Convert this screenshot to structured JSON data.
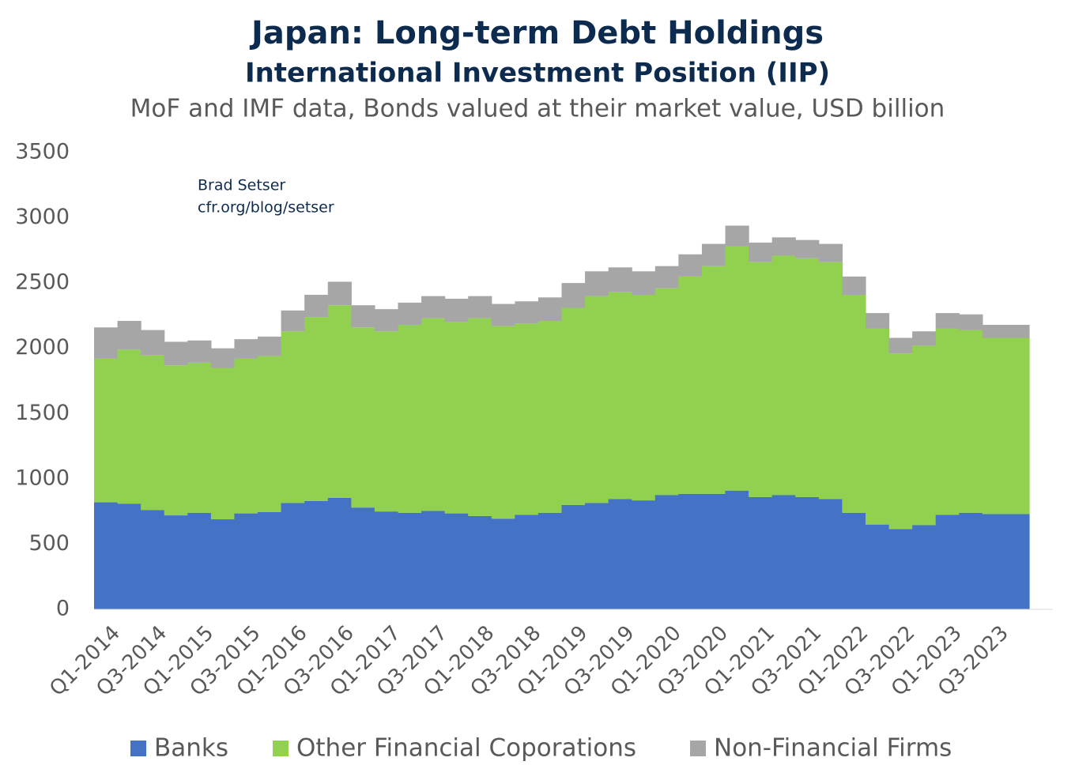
{
  "chart_data": {
    "type": "stacked-bar",
    "title": "Japan: Long-term Debt Holdings",
    "subtitle": "International Investment Position (IIP)",
    "description": "MoF and IMF data, Bonds valued at their market value, USD billion",
    "annotations": [
      "Brad Setser",
      "cfr.org/blog/setser"
    ],
    "categories": [
      "Q1-2014",
      null,
      "Q3-2014",
      null,
      "Q1-2015",
      null,
      "Q3-2015",
      null,
      "Q1-2016",
      null,
      "Q3-2016",
      null,
      "Q1-2017",
      null,
      "Q3-2017",
      null,
      "Q1-2018",
      null,
      "Q3-2018",
      null,
      "Q1-2019",
      null,
      "Q3-2019",
      null,
      "Q1-2020",
      null,
      "Q3-2020",
      null,
      "Q1-2021",
      null,
      "Q3-2021",
      null,
      "Q1-2022",
      null,
      "Q3-2022",
      null,
      "Q1-2023",
      null,
      "Q3-2023",
      null
    ],
    "series": [
      {
        "name": "Banks",
        "color": "#4472c4",
        "values": [
          820,
          810,
          760,
          720,
          740,
          690,
          735,
          745,
          815,
          830,
          855,
          780,
          750,
          740,
          755,
          735,
          715,
          695,
          725,
          740,
          800,
          815,
          845,
          835,
          875,
          885,
          885,
          910,
          860,
          875,
          860,
          845,
          740,
          650,
          615,
          645,
          725,
          740,
          730,
          730
        ]
      },
      {
        "name": "Other Financial Coporations",
        "color": "#92d050",
        "values": [
          1100,
          1180,
          1185,
          1150,
          1150,
          1160,
          1185,
          1195,
          1315,
          1410,
          1475,
          1380,
          1380,
          1440,
          1475,
          1465,
          1515,
          1475,
          1465,
          1470,
          1510,
          1585,
          1585,
          1575,
          1585,
          1665,
          1745,
          1870,
          1800,
          1835,
          1830,
          1815,
          1670,
          1500,
          1345,
          1375,
          1425,
          1400,
          1350,
          1350
        ]
      },
      {
        "name": "Non-Financial Firms",
        "color": "#a6a6a6",
        "values": [
          240,
          220,
          195,
          180,
          170,
          150,
          150,
          150,
          160,
          170,
          180,
          170,
          170,
          170,
          170,
          180,
          170,
          170,
          170,
          180,
          190,
          190,
          190,
          180,
          170,
          170,
          170,
          160,
          150,
          140,
          140,
          140,
          140,
          120,
          120,
          110,
          120,
          120,
          100,
          100
        ]
      }
    ],
    "ylim": [
      0,
      3500
    ],
    "yticks": [
      0,
      500,
      1000,
      1500,
      2000,
      2500,
      3000,
      3500
    ],
    "grid": false,
    "legend": "bottom"
  }
}
